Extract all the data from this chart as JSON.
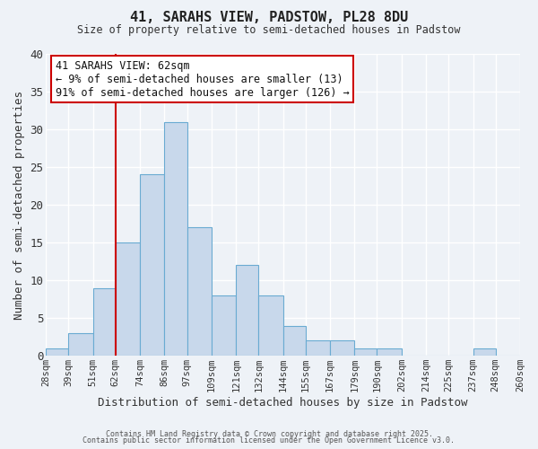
{
  "title": "41, SARAHS VIEW, PADSTOW, PL28 8DU",
  "subtitle": "Size of property relative to semi-detached houses in Padstow",
  "xlabel": "Distribution of semi-detached houses by size in Padstow",
  "ylabel": "Number of semi-detached properties",
  "bar_color": "#c8d8eb",
  "bar_edgecolor": "#6aabd2",
  "background_color": "#eef2f7",
  "grid_color": "#ffffff",
  "annotation_box_edgecolor": "#cc0000",
  "annotation_line_color": "#cc0000",
  "annotation_line1": "41 SARAHS VIEW: 62sqm",
  "annotation_line2": "← 9% of semi-detached houses are smaller (13)",
  "annotation_line3": "91% of semi-detached houses are larger (126) →",
  "property_line_x": 62,
  "footer_line1": "Contains HM Land Registry data © Crown copyright and database right 2025.",
  "footer_line2": "Contains public sector information licensed under the Open Government Licence v3.0.",
  "bins": [
    28,
    39,
    51,
    62,
    74,
    86,
    97,
    109,
    121,
    132,
    144,
    155,
    167,
    179,
    190,
    202,
    214,
    225,
    237,
    248,
    260
  ],
  "counts": [
    1,
    3,
    9,
    15,
    24,
    31,
    17,
    8,
    12,
    8,
    4,
    2,
    2,
    1,
    1,
    0,
    0,
    0,
    1,
    0
  ],
  "tick_labels": [
    "28sqm",
    "39sqm",
    "51sqm",
    "62sqm",
    "74sqm",
    "86sqm",
    "97sqm",
    "109sqm",
    "121sqm",
    "132sqm",
    "144sqm",
    "155sqm",
    "167sqm",
    "179sqm",
    "190sqm",
    "202sqm",
    "214sqm",
    "225sqm",
    "237sqm",
    "248sqm",
    "260sqm"
  ],
  "ylim": [
    0,
    40
  ],
  "yticks": [
    0,
    5,
    10,
    15,
    20,
    25,
    30,
    35,
    40
  ]
}
